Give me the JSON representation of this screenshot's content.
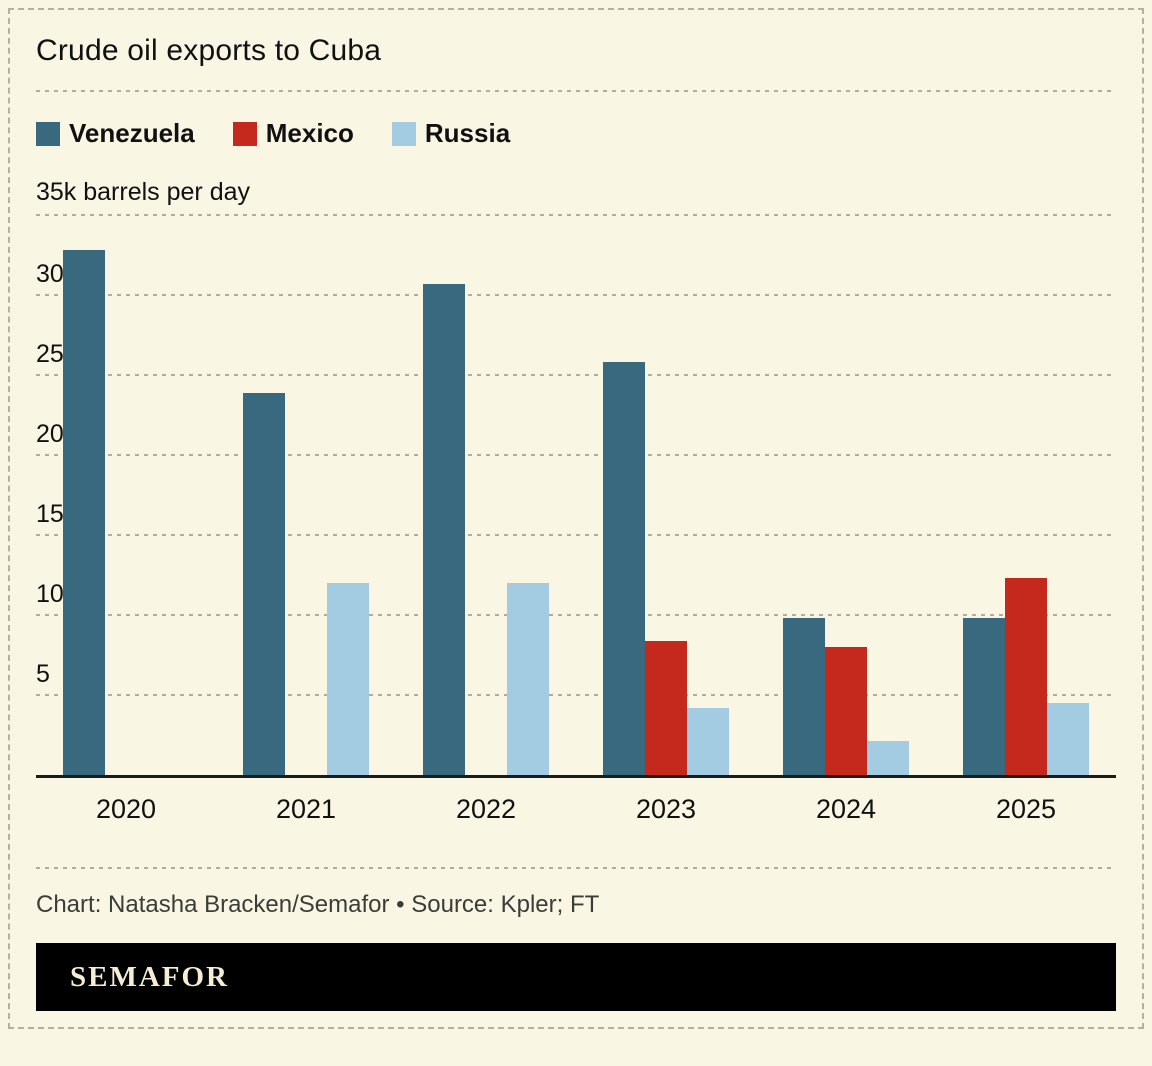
{
  "title": "Crude oil exports to Cuba",
  "chart_data": {
    "type": "bar",
    "title": "Crude oil exports to Cuba",
    "categories": [
      "2020",
      "2021",
      "2022",
      "2023",
      "2024",
      "2025"
    ],
    "series": [
      {
        "name": "Venezuela",
        "color": "#38697f",
        "values": [
          32.8,
          23.9,
          30.7,
          25.8,
          9.8,
          9.8
        ]
      },
      {
        "name": "Mexico",
        "color": "#c5281c",
        "values": [
          0,
          0,
          0,
          8.4,
          8.0,
          12.3
        ]
      },
      {
        "name": "Russia",
        "color": "#a3cce2",
        "values": [
          0,
          12.0,
          12.0,
          4.2,
          2.1,
          4.5
        ]
      }
    ],
    "xlabel": "",
    "ylabel": "35k barrels per day",
    "ylim": [
      0,
      35
    ],
    "yticks": [
      5,
      10,
      15,
      20,
      25,
      30
    ],
    "grid": "dashed horizontal lines",
    "legend_position": "top-left"
  },
  "footer": {
    "credit": "Chart: Natasha Bracken/Semafor • Source: Kpler; FT",
    "logo": "SEMAFOR"
  },
  "colors": {
    "background": "#f9f6e4",
    "venezuela": "#38697f",
    "mexico": "#c5281c",
    "russia": "#a3cce2",
    "axis": "#1c1c1c",
    "gridline": "#aeae9e",
    "logo_bar": "#000000",
    "logo_text": "#f6edd2"
  }
}
